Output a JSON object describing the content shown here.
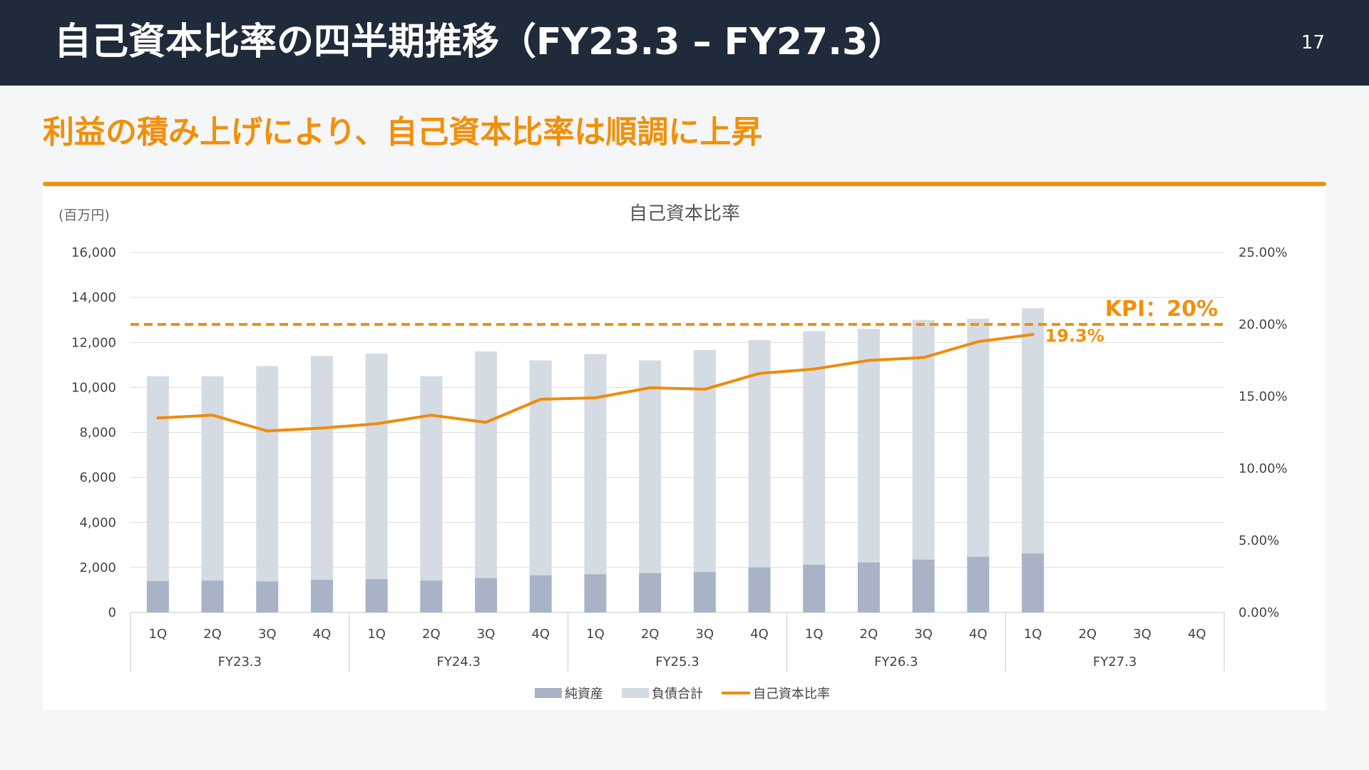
{
  "header": {
    "title": "自己資本比率の四半期推移（FY23.3 – FY27.3）",
    "page_number": "17"
  },
  "subtitle": "利益の積み上げにより、自己資本比率は順調に上昇",
  "colors": {
    "header_bg": "#1f2a3a",
    "accent": "#f0900b",
    "net_assets": "#a8b3c7",
    "liabilities": "#d5dbe3",
    "ratio_line": "#ee8c0c"
  },
  "chart_data": {
    "type": "bar",
    "title": "自己資本比率",
    "unit_label": "(百万円)",
    "quarter_labels": [
      "1Q",
      "2Q",
      "3Q",
      "4Q",
      "1Q",
      "2Q",
      "3Q",
      "4Q",
      "1Q",
      "2Q",
      "3Q",
      "4Q",
      "1Q",
      "2Q",
      "3Q",
      "4Q",
      "1Q",
      "2Q",
      "3Q",
      "4Q"
    ],
    "groups": [
      "FY23.3",
      "FY24.3",
      "FY25.3",
      "FY26.3",
      "FY27.3"
    ],
    "y_left": {
      "min": 0,
      "max": 16000,
      "ticks": [
        "0",
        "2,000",
        "4,000",
        "6,000",
        "8,000",
        "10,000",
        "12,000",
        "14,000",
        "16,000"
      ]
    },
    "y_right": {
      "min": 0,
      "max": 25,
      "ticks": [
        "0.00%",
        "5.00%",
        "10.00%",
        "15.00%",
        "20.00%",
        "25.00%"
      ]
    },
    "stacked": true,
    "series": [
      {
        "name": "純資産",
        "axis": "left",
        "values": [
          1400,
          1420,
          1380,
          1450,
          1480,
          1420,
          1530,
          1650,
          1700,
          1750,
          1800,
          2000,
          2120,
          2220,
          2350,
          2480,
          2620,
          null,
          null,
          null
        ]
      },
      {
        "name": "負債合計",
        "axis": "left",
        "values": [
          9100,
          9080,
          9570,
          9950,
          10020,
          9080,
          10070,
          9550,
          9780,
          9450,
          9860,
          10100,
          10380,
          10380,
          10650,
          10570,
          10900,
          null,
          null,
          null
        ]
      },
      {
        "name": "自己資本比率",
        "type": "line",
        "axis": "right",
        "values": [
          13.5,
          13.7,
          12.6,
          12.8,
          13.1,
          13.7,
          13.2,
          14.8,
          14.9,
          15.6,
          15.5,
          16.6,
          16.9,
          17.5,
          17.7,
          18.8,
          19.3,
          null,
          null,
          null
        ]
      }
    ],
    "kpi": {
      "label": "KPI：20%",
      "value": 20
    },
    "annotation": {
      "text": "19.3%",
      "index": 16
    },
    "grid": true,
    "legend_position": "bottom"
  }
}
